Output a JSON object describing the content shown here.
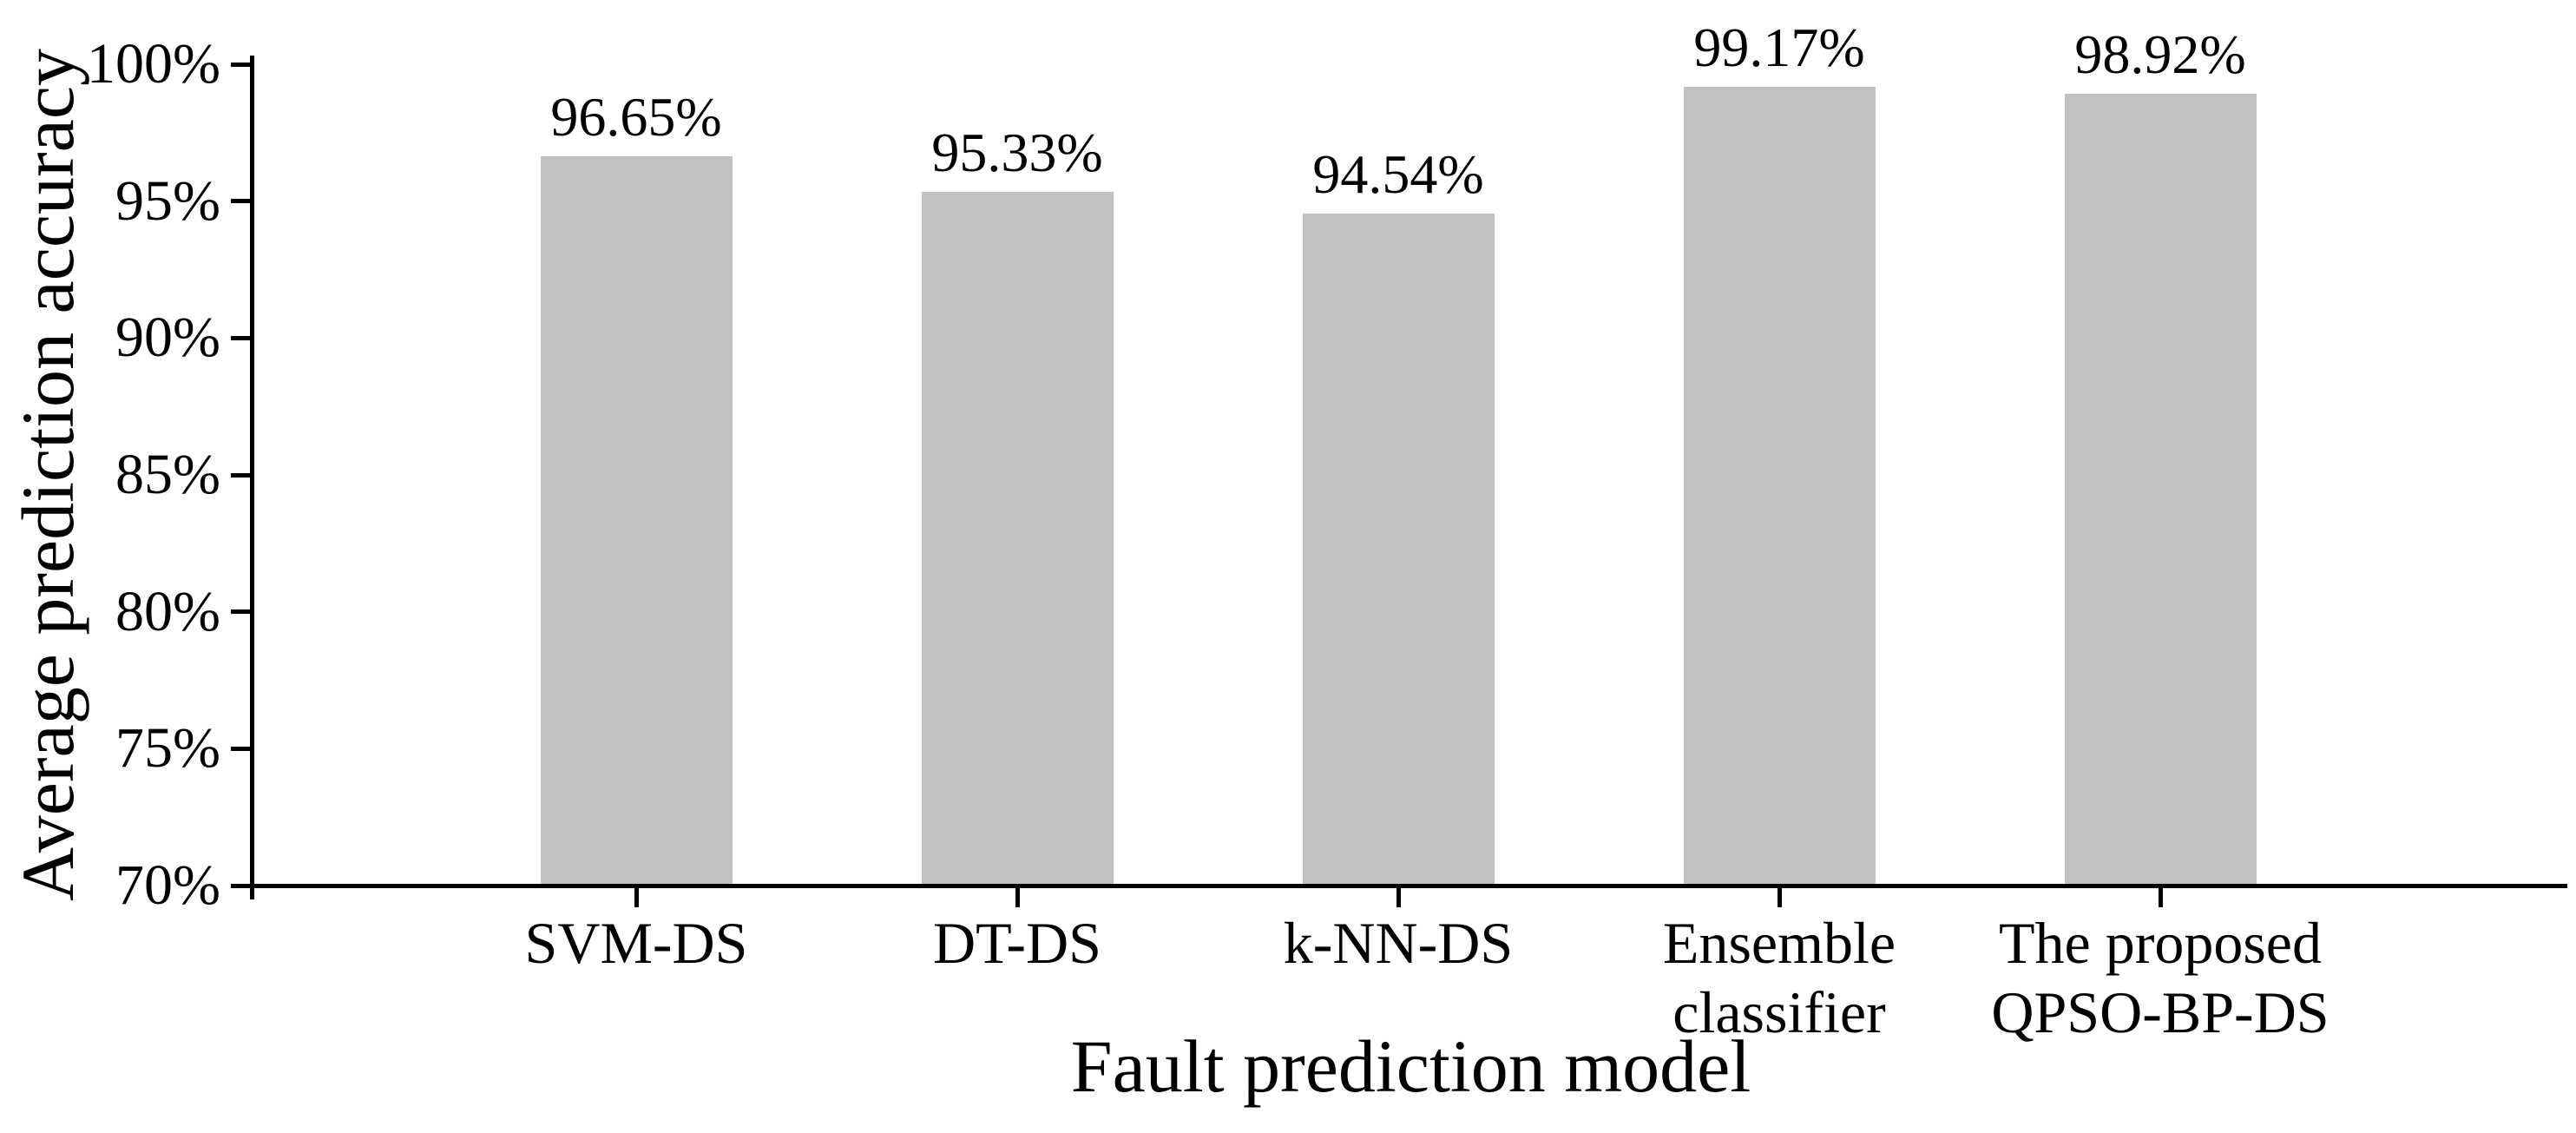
{
  "chart_data": {
    "type": "bar",
    "title": "",
    "xlabel": "Fault prediction model",
    "ylabel": "Average prediction accuracy",
    "categories": [
      "SVM-DS",
      "DT-DS",
      "k-NN-DS",
      "Ensemble\nclassifier",
      "The proposed\nQPSO-BP-DS"
    ],
    "values": [
      96.65,
      95.33,
      94.54,
      99.17,
      98.92
    ],
    "value_labels": [
      "96.65%",
      "95.33%",
      "94.54%",
      "99.17%",
      "98.92%"
    ],
    "ylim": [
      70,
      100
    ],
    "yticks": [
      70,
      75,
      80,
      85,
      90,
      95,
      100
    ],
    "ytick_labels": [
      "70%",
      "75%",
      "80%",
      "85%",
      "90%",
      "95%",
      "100%"
    ],
    "grid": false,
    "legend_position": "none",
    "bar_color": "#c1c1c1",
    "axis_color": "#000000",
    "text_color": "#000000",
    "background_color": "#ffffff"
  }
}
